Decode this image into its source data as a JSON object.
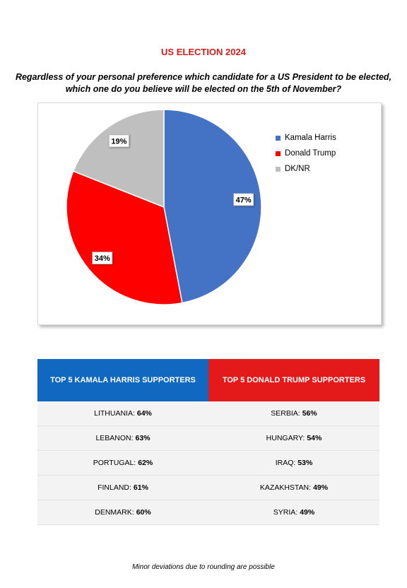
{
  "title": "US ELECTION 2024",
  "question": "Regardless of your personal preference which candidate for a US President to be elected, which one do you believe will be elected on the 5th of November?",
  "chart_data": {
    "type": "pie",
    "title": "",
    "start_angle_deg": 0,
    "direction": "clockwise",
    "legend_position": "top-right",
    "slices": [
      {
        "name": "Kamala Harris",
        "value": 47,
        "label": "47%",
        "color": "#4472c4"
      },
      {
        "name": "Donald Trump",
        "value": 34,
        "label": "34%",
        "color": "#ff0000"
      },
      {
        "name": "DK/NR",
        "value": 19,
        "label": "19%",
        "color": "#bfbfbf"
      }
    ]
  },
  "table": {
    "left_header": "TOP 5 KAMALA HARRIS SUPPORTERS",
    "right_header": "TOP 5 DONALD TRUMP SUPPORTERS",
    "header_colors": {
      "left": "#1068c0",
      "right": "#e41a1a"
    },
    "rows": [
      {
        "left_country": "LITHUANIA:",
        "left_value": "64%",
        "right_country": "SERBIA:",
        "right_value": "56%"
      },
      {
        "left_country": "LEBANON:",
        "left_value": "63%",
        "right_country": "HUNGARY:",
        "right_value": "54%"
      },
      {
        "left_country": "PORTUGAL:",
        "left_value": "62%",
        "right_country": "IRAQ:",
        "right_value": "53%"
      },
      {
        "left_country": "FINLAND:",
        "left_value": "61%",
        "right_country": "KAZAKHSTAN:",
        "right_value": "49%"
      },
      {
        "left_country": "DENMARK:",
        "left_value": "60%",
        "right_country": "SYRIA:",
        "right_value": "49%"
      }
    ]
  },
  "footnote": "Minor deviations due to rounding are possible"
}
